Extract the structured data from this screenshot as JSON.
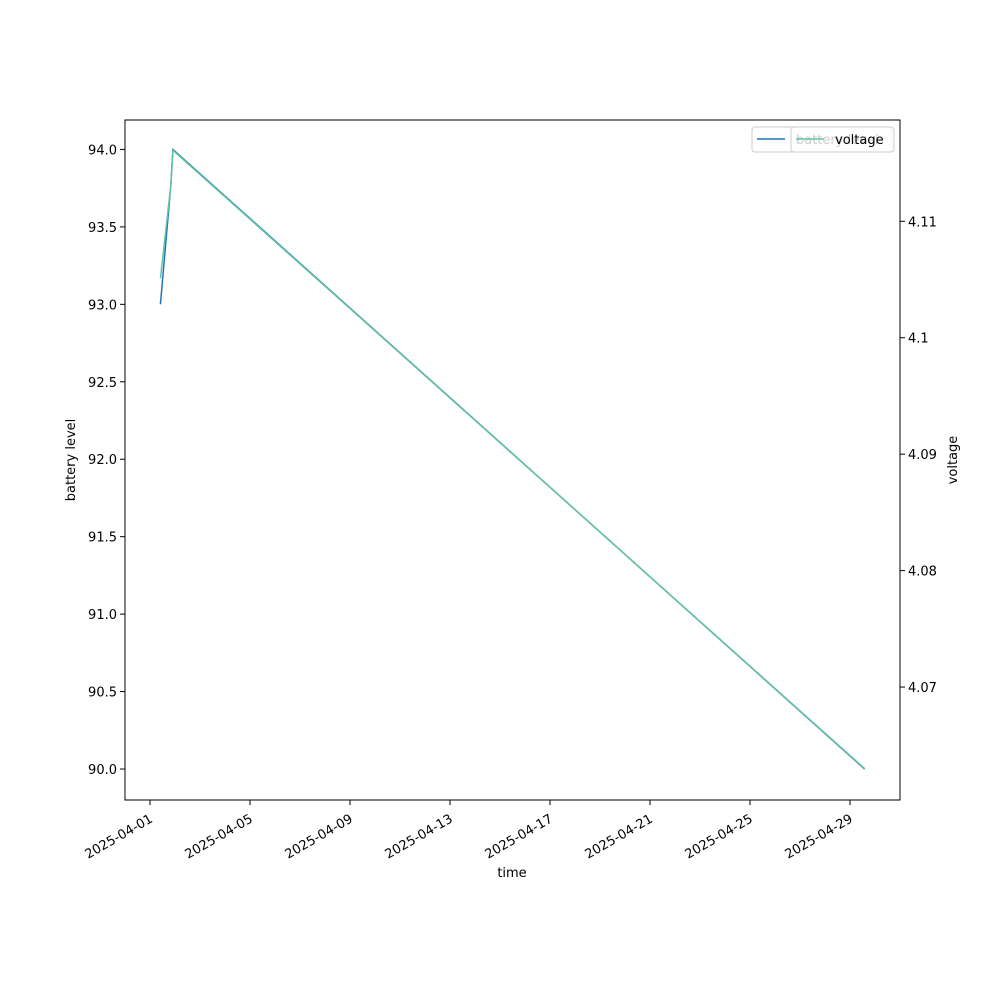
{
  "chart_data": {
    "type": "line",
    "x_label": "time",
    "y_label": "battery level",
    "y2_label": "voltage",
    "x": [
      "2025-04-01 10:00",
      "2025-04-01 20:00",
      "2025-04-01 22:00",
      "2025-04-29 14:00"
    ],
    "series": [
      {
        "name": "battery level",
        "color": "#1f77b4",
        "values": [
          93.0,
          93.77,
          94.0,
          90.0
        ]
      },
      {
        "name": "voltage",
        "color": "#66c2a5",
        "axis": "y2",
        "values": [
          4.1051,
          4.1131,
          4.1161,
          4.063
        ]
      }
    ],
    "xlim": [
      "2025-03-31",
      "2025-05-01"
    ],
    "xticks": [
      "2025-04-01",
      "2025-04-05",
      "2025-04-09",
      "2025-04-13",
      "2025-04-17",
      "2025-04-21",
      "2025-04-25",
      "2025-04-29"
    ],
    "ylim": [
      89.8,
      94.19
    ],
    "yticks": [
      {
        "value": 90,
        "label": "90.0"
      },
      90.5,
      {
        "value": 91,
        "label": "91.0"
      },
      91.5,
      {
        "value": 92,
        "label": "92.0"
      },
      92.5,
      {
        "value": 93,
        "label": "93.0"
      },
      93.5,
      {
        "value": 94,
        "label": "94.0"
      }
    ],
    "y2lim": [
      4.0603,
      4.1187
    ],
    "y2ticks": [
      4.07,
      4.08,
      4.09,
      4.1,
      4.11
    ],
    "legend": "upper right"
  }
}
